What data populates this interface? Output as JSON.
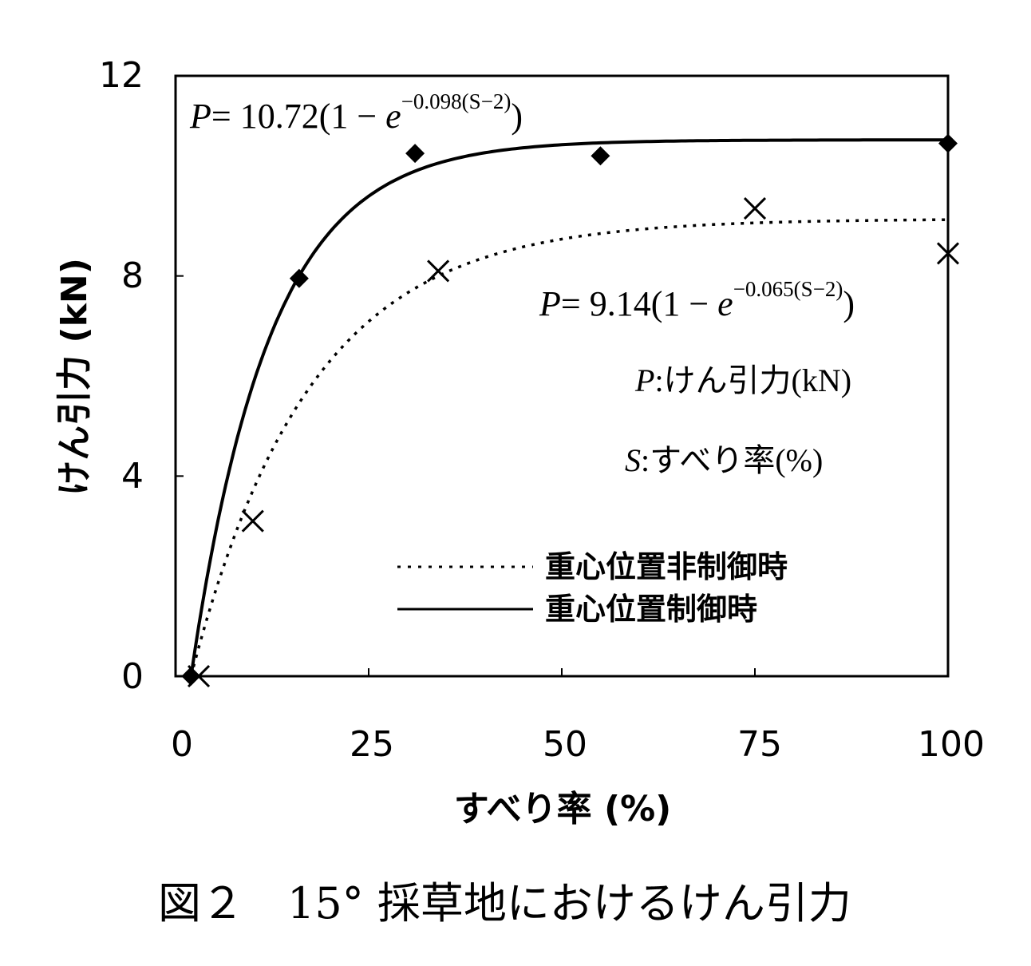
{
  "chart_data": {
    "type": "scatter",
    "title": "",
    "xlabel": "すべり率 (%)",
    "ylabel": "けん引力 (kN)",
    "xlim": [
      0,
      100
    ],
    "ylim": [
      0,
      12
    ],
    "xticks": [
      "0",
      "25",
      "50",
      "75",
      "100"
    ],
    "yticks": [
      "0",
      "4",
      "8",
      "12"
    ],
    "grid": false,
    "legend_position": "bottom-right",
    "series": [
      {
        "name": "重心位置制御時",
        "marker": "diamond",
        "line": "solid",
        "points": [
          [
            2,
            0
          ],
          [
            16,
            7.95
          ],
          [
            31,
            10.45
          ],
          [
            55,
            10.4
          ],
          [
            100,
            10.65
          ]
        ],
        "fit": {
          "a": 10.72,
          "b": 0.098,
          "s0": 2
        }
      },
      {
        "name": "重心位置非制御時",
        "marker": "x",
        "line": "dotted",
        "points": [
          [
            3,
            0
          ],
          [
            10,
            3.1
          ],
          [
            34,
            8.1
          ],
          [
            75,
            9.35
          ],
          [
            100,
            8.45
          ]
        ],
        "fit": {
          "a": 9.14,
          "b": 0.065,
          "s0": 2
        }
      }
    ],
    "annotations": {
      "formula1": {
        "lhs": "P",
        "eq": "= 10.72(1 − ",
        "e": "e",
        "exp": "−0.098(S−2)",
        "close": ")"
      },
      "formula2": {
        "lhs": "P",
        "eq": "= 9.14(1 − ",
        "e": "e",
        "exp": "−0.065(S−2)",
        "close": ")"
      },
      "note_p": {
        "var": "P",
        "text": ":けん引力(kN)"
      },
      "note_s": {
        "var": "S",
        "text": ":すべり率(%)"
      }
    }
  },
  "caption": "図２　15°  採草地におけるけん引力",
  "colors": {
    "ink": "#000000",
    "background": "#ffffff"
  }
}
